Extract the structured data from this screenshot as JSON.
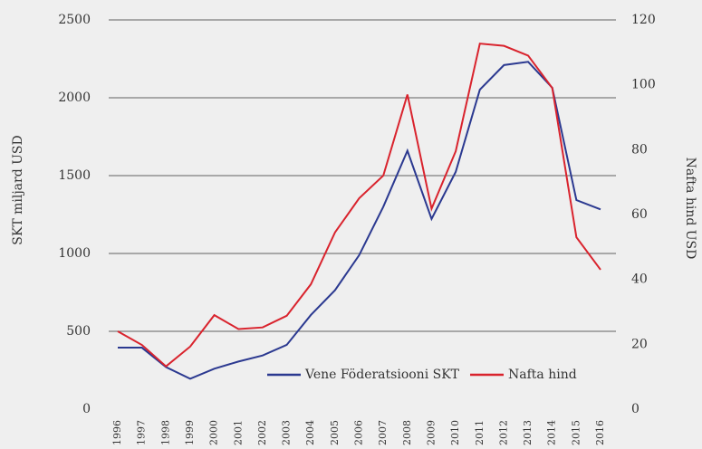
{
  "chart_data": {
    "type": "line",
    "y_label": "SKT miljard USD",
    "y2_label": "Nafta hind USD",
    "categories": [
      "1996",
      "1997",
      "1998",
      "1999",
      "2000",
      "2001",
      "2002",
      "2003",
      "2004",
      "2005",
      "2006",
      "2007",
      "2008",
      "2009",
      "2010",
      "2011",
      "2012",
      "2013",
      "2014",
      "2015",
      "2016"
    ],
    "series": [
      {
        "name": "Vene Föderatsiooni SKT",
        "color": "#2b3990",
        "axis": "y",
        "values": [
          395,
          395,
          270,
          195,
          260,
          306,
          345,
          413,
          605,
          764,
          989,
          1300,
          1660,
          1222,
          1524,
          2052,
          2210,
          2231,
          2064,
          1343,
          1283
        ]
      },
      {
        "name": "Nafta hind",
        "color": "#d9232d",
        "axis": "y2",
        "values": [
          24,
          19.8,
          13.2,
          19.3,
          29,
          24.7,
          25.2,
          28.8,
          38.5,
          54.5,
          65,
          72,
          97,
          61.8,
          79.5,
          112.7,
          112,
          109,
          99,
          53,
          43
        ]
      }
    ],
    "ylim": [
      0,
      2500
    ],
    "yticks": [
      0,
      500,
      1000,
      1500,
      2000,
      2500
    ],
    "y2lim": [
      0,
      120
    ],
    "y2ticks": [
      0,
      20,
      40,
      60,
      80,
      100,
      120
    ],
    "grid": true,
    "legend": "lower right"
  }
}
